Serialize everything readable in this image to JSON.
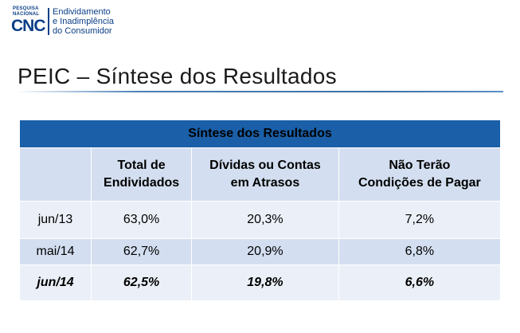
{
  "logo": {
    "line1": "PESQUISA",
    "line2": "NACIONAL",
    "brand": "CNC",
    "name_lines": [
      "Endividamento",
      "e Inadimplência",
      "do Consumidor"
    ]
  },
  "page": {
    "title": "PEIC – Síntese dos Resultados"
  },
  "table": {
    "caption": "Síntese dos Resultados",
    "columns": [
      {
        "line1": "Total de",
        "line2": "Endividados"
      },
      {
        "line1": "Dívidas ou Contas",
        "line2": "em Atrasos"
      },
      {
        "line1": "Não Terão",
        "line2": "Condições de Pagar"
      }
    ],
    "rows": [
      {
        "period": "jun/13",
        "values": [
          "63,0%",
          "20,3%",
          "7,2%"
        ]
      },
      {
        "period": "mai/14",
        "values": [
          "62,7%",
          "20,9%",
          "6,8%"
        ]
      },
      {
        "period": "jun/14",
        "values": [
          "62,5%",
          "19,8%",
          "6,6%"
        ]
      }
    ]
  },
  "colors": {
    "header": "#1a5fa8",
    "row_light": "#ebf0f8",
    "row_dark": "#d3dff0",
    "brand": "#0b3f87"
  }
}
